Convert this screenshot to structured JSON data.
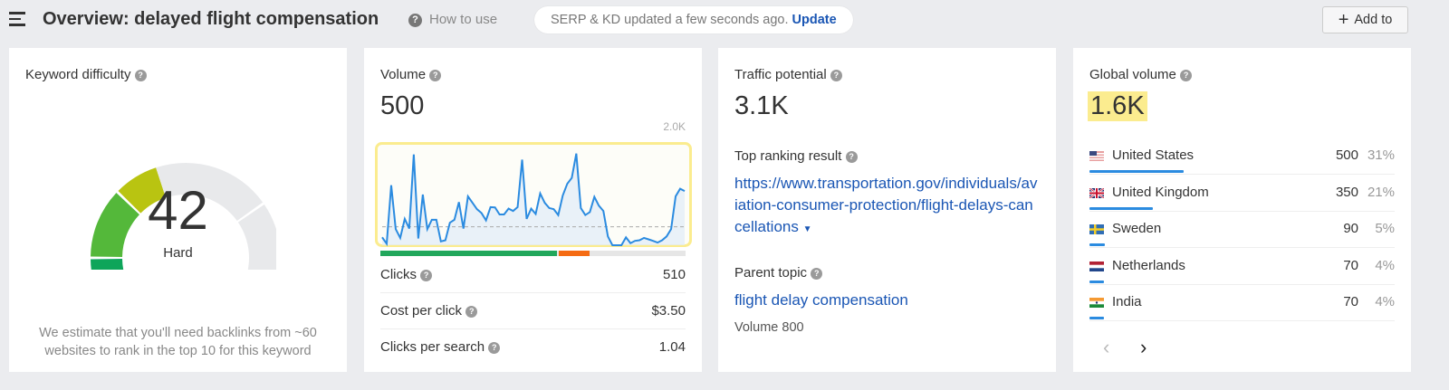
{
  "header": {
    "title": "Overview: delayed flight compensation",
    "how_to_use": "How to use",
    "serp_status": "SERP & KD updated a few seconds ago.",
    "update_link": "Update",
    "add_to": "Add to"
  },
  "kd": {
    "label": "Keyword difficulty",
    "value": "42",
    "rating": "Hard",
    "value_pct": 42,
    "description": "We estimate that you'll need backlinks from ~60 websites to rank in the top 10 for this keyword"
  },
  "volume": {
    "label": "Volume",
    "value": "500",
    "chart_max_label": "2.0K",
    "clicks_split": {
      "organic_pct": 58,
      "paid_pct": 10
    },
    "rows": [
      {
        "label": "Clicks",
        "value": "510"
      },
      {
        "label": "Cost per click",
        "value": "$3.50"
      },
      {
        "label": "Clicks per search",
        "value": "1.04"
      }
    ]
  },
  "chart_data": {
    "type": "area",
    "ylim": [
      0,
      2000
    ],
    "y_tick_labels": [
      "2.0K"
    ],
    "reference_line": 370,
    "values": [
      159,
      29,
      1206,
      324,
      147,
      529,
      335,
      1824,
      135,
      1018,
      324,
      512,
      512,
      76,
      100,
      453,
      512,
      865,
      335,
      982,
      853,
      724,
      647,
      500,
      765,
      759,
      618,
      618,
      735,
      688,
      765,
      1718,
      529,
      735,
      629,
      1041,
      853,
      747,
      724,
      606,
      1000,
      1235,
      1353,
      1841,
      747,
      606,
      665,
      971,
      794,
      688,
      176,
      0,
      0,
      0,
      159,
      41,
      88,
      100,
      147,
      118,
      88,
      53,
      100,
      176,
      324,
      982,
      1135,
      1088
    ]
  },
  "traffic": {
    "label": "Traffic potential",
    "value": "3.1K",
    "top_result_label": "Top ranking result",
    "top_result_url": "https://www.transportation.gov/individuals/aviation-consumer-protection/flight-delays-cancellations",
    "parent_label": "Parent topic",
    "parent_topic": "flight delay compensation",
    "parent_volume": "Volume 800"
  },
  "global": {
    "label": "Global volume",
    "value": "1.6K",
    "countries": [
      {
        "name": "United States",
        "volume": "500",
        "pct": "31%",
        "share": 31,
        "flag": "us-flag"
      },
      {
        "name": "United Kingdom",
        "volume": "350",
        "pct": "21%",
        "share": 21,
        "flag": "uk-flag"
      },
      {
        "name": "Sweden",
        "volume": "90",
        "pct": "5%",
        "share": 5,
        "flag": "se-flag"
      },
      {
        "name": "Netherlands",
        "volume": "70",
        "pct": "4%",
        "share": 4,
        "flag": "nl-flag"
      },
      {
        "name": "India",
        "volume": "70",
        "pct": "4%",
        "share": 4,
        "flag": "in-flag"
      }
    ]
  },
  "colors": {
    "link": "#1a56b4",
    "highlight": "#fbec8f",
    "line": "#2b8be0",
    "organic": "#22a75c",
    "paid": "#f56b13"
  }
}
